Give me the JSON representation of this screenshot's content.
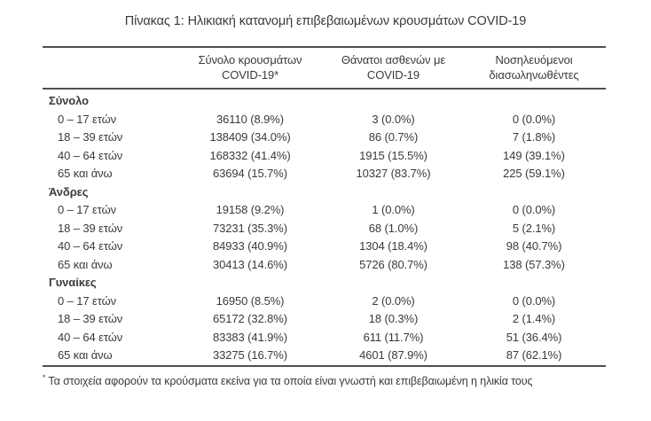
{
  "page": {
    "title": "Πίνακας 1: Ηλικιακή κατανομή επιβεβαιωμένων κρουσμάτων COVID-19"
  },
  "table": {
    "column_headers": [
      {
        "line1": "Σύνολο κρουσμάτων",
        "line2": "COVID-19*"
      },
      {
        "line1": "Θάνατοι ασθενών με",
        "line2": "COVID-19"
      },
      {
        "line1": "Νοσηλευόμενοι",
        "line2": "διασωληνωθέντες"
      }
    ],
    "sections": [
      {
        "label": "Σύνολο",
        "rows": [
          {
            "age": "0 – 17 ετών",
            "cases": "36110 (8.9%)",
            "deaths": "3 (0.0%)",
            "intubated": "0 (0.0%)"
          },
          {
            "age": "18 – 39 ετών",
            "cases": "138409 (34.0%)",
            "deaths": "86 (0.7%)",
            "intubated": "7 (1.8%)"
          },
          {
            "age": "40 – 64 ετών",
            "cases": "168332 (41.4%)",
            "deaths": "1915 (15.5%)",
            "intubated": "149 (39.1%)"
          },
          {
            "age": "65 και άνω",
            "cases": "63694 (15.7%)",
            "deaths": "10327 (83.7%)",
            "intubated": "225 (59.1%)"
          }
        ]
      },
      {
        "label": "Άνδρες",
        "rows": [
          {
            "age": "0 – 17 ετών",
            "cases": "19158 (9.2%)",
            "deaths": "1 (0.0%)",
            "intubated": "0 (0.0%)"
          },
          {
            "age": "18 – 39 ετών",
            "cases": "73231 (35.3%)",
            "deaths": "68 (1.0%)",
            "intubated": "5 (2.1%)"
          },
          {
            "age": "40 – 64 ετών",
            "cases": "84933 (40.9%)",
            "deaths": "1304 (18.4%)",
            "intubated": "98 (40.7%)"
          },
          {
            "age": "65 και άνω",
            "cases": "30413 (14.6%)",
            "deaths": "5726 (80.7%)",
            "intubated": "138 (57.3%)"
          }
        ]
      },
      {
        "label": "Γυναίκες",
        "rows": [
          {
            "age": "0 – 17 ετών",
            "cases": "16950 (8.5%)",
            "deaths": "2 (0.0%)",
            "intubated": "0 (0.0%)"
          },
          {
            "age": "18 – 39 ετών",
            "cases": "65172 (32.8%)",
            "deaths": "18 (0.3%)",
            "intubated": "2 (1.4%)"
          },
          {
            "age": "40 – 64 ετών",
            "cases": "83383 (41.9%)",
            "deaths": "611 (11.7%)",
            "intubated": "51 (36.4%)"
          },
          {
            "age": "65 και άνω",
            "cases": "33275 (16.7%)",
            "deaths": "4601 (87.9%)",
            "intubated": "87 (62.1%)"
          }
        ]
      }
    ],
    "footnote": {
      "marker": "*",
      "text": "Τα στοιχεία αφορούν τα κρούσματα εκείνα για τα οποία είναι γνωστή και επιβεβαιωμένη η ηλικία τους"
    }
  },
  "colors": {
    "text": "#3a3a3a",
    "rule": "#4f4f4f",
    "background": "#ffffff"
  }
}
